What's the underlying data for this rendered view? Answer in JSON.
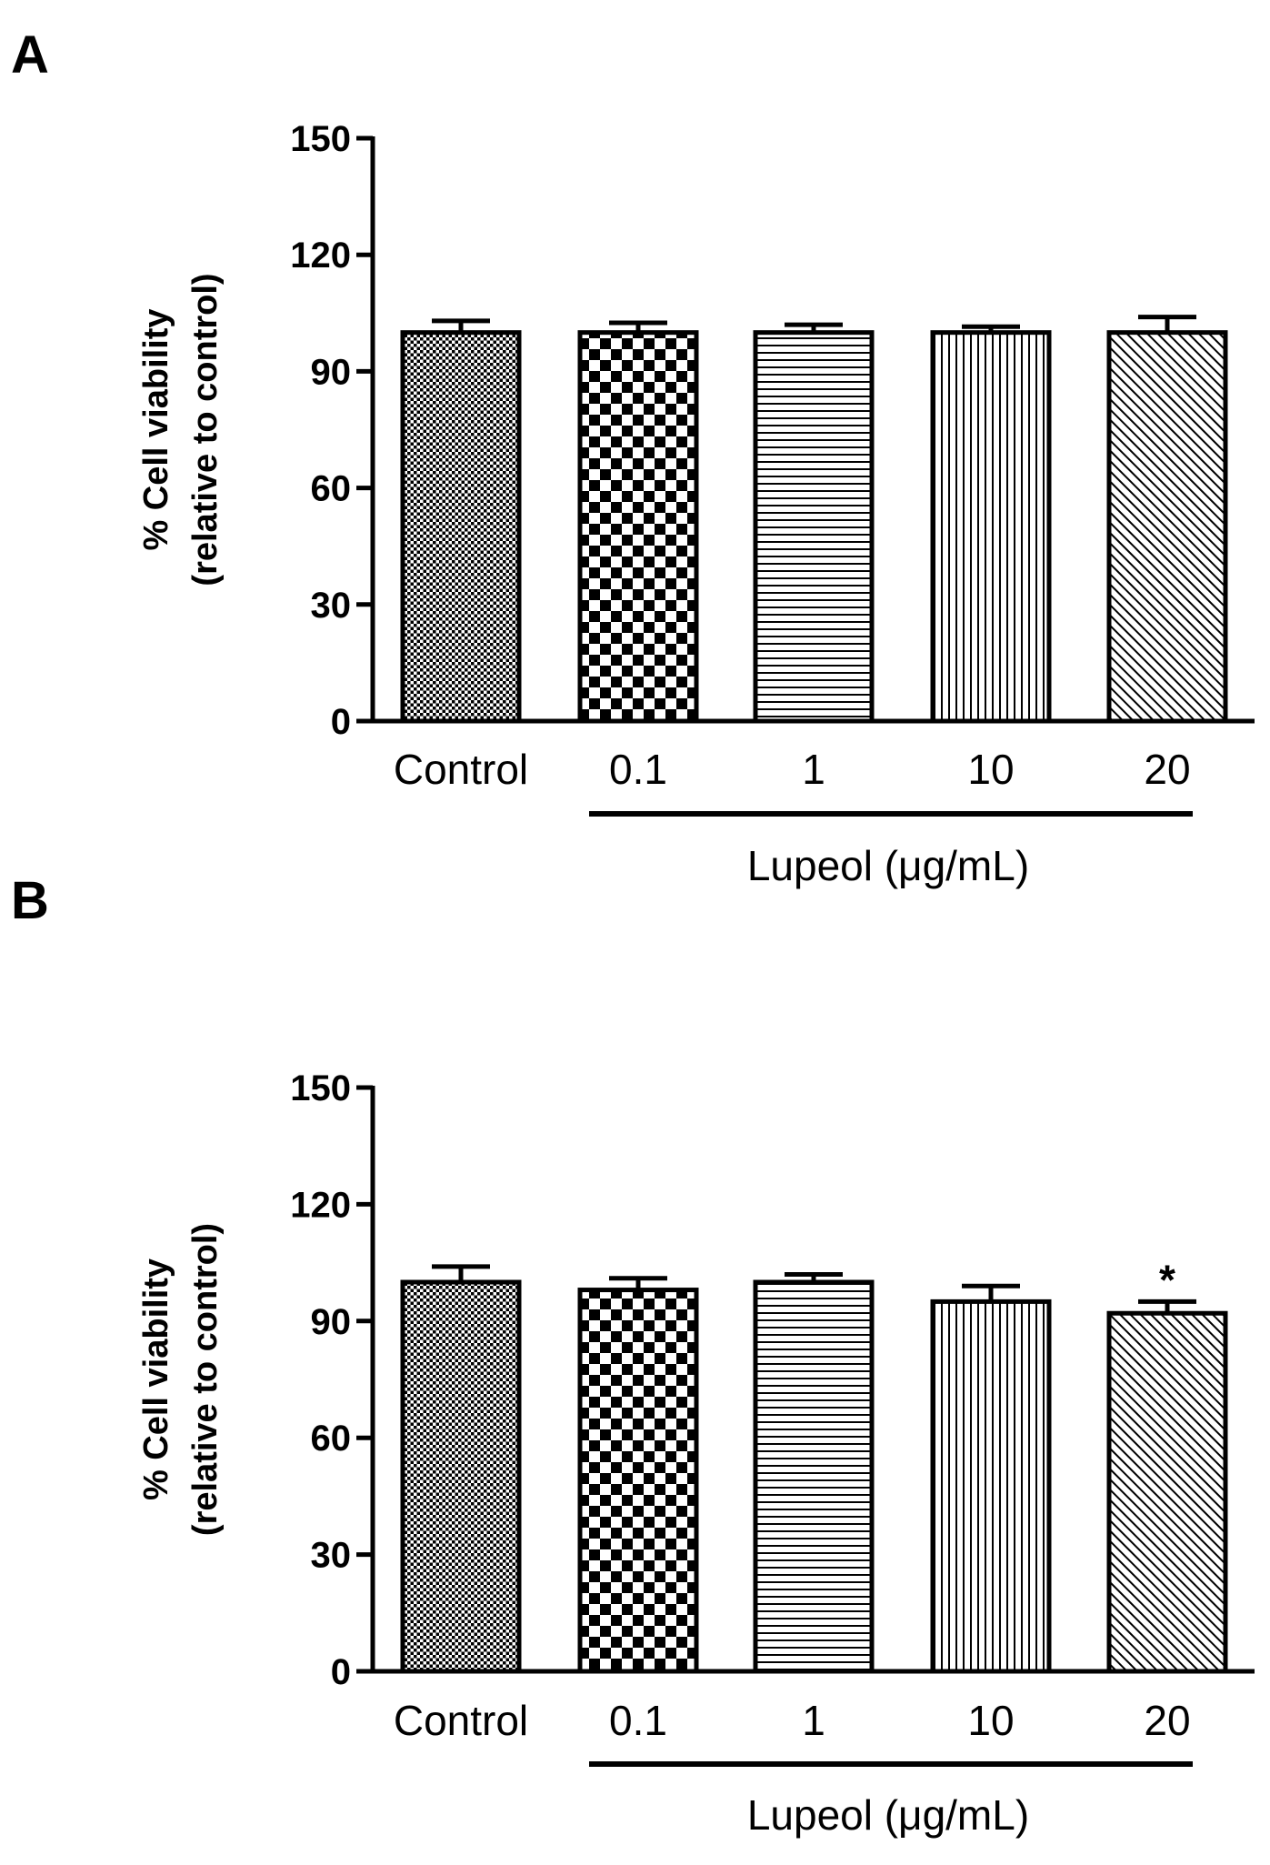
{
  "chart_data": [
    {
      "panel": "A",
      "type": "bar",
      "categories": [
        "Control",
        "0.1",
        "1",
        "10",
        "20"
      ],
      "values": [
        100,
        100,
        100,
        100,
        100
      ],
      "errors": [
        3,
        2.5,
        2,
        1.5,
        4
      ],
      "patterns": [
        "dots",
        "checker",
        "hlines",
        "vlines",
        "diag"
      ],
      "significance": [
        "",
        "",
        "",
        "",
        ""
      ],
      "ylabel_line1": "% Cell viability",
      "ylabel_line2": "(relative to control)",
      "ylim": [
        0,
        150
      ],
      "yticks": [
        0,
        30,
        60,
        90,
        120,
        150
      ],
      "group_label": "Lupeol (μg/mL)",
      "grid": false
    },
    {
      "panel": "B",
      "type": "bar",
      "categories": [
        "Control",
        "0.1",
        "1",
        "10",
        "20"
      ],
      "values": [
        100,
        98,
        100,
        95,
        92
      ],
      "errors": [
        4,
        3,
        2,
        4,
        3
      ],
      "patterns": [
        "dots",
        "checker",
        "hlines",
        "vlines",
        "diag"
      ],
      "significance": [
        "",
        "",
        "",
        "",
        "*"
      ],
      "ylabel_line1": "% Cell viability",
      "ylabel_line2": "(relative to control)",
      "ylim": [
        0,
        150
      ],
      "yticks": [
        0,
        30,
        60,
        90,
        120,
        150
      ],
      "group_label": "Lupeol (μg/mL)",
      "grid": false
    }
  ],
  "colors": {
    "ink": "#000000",
    "background": "#ffffff"
  }
}
